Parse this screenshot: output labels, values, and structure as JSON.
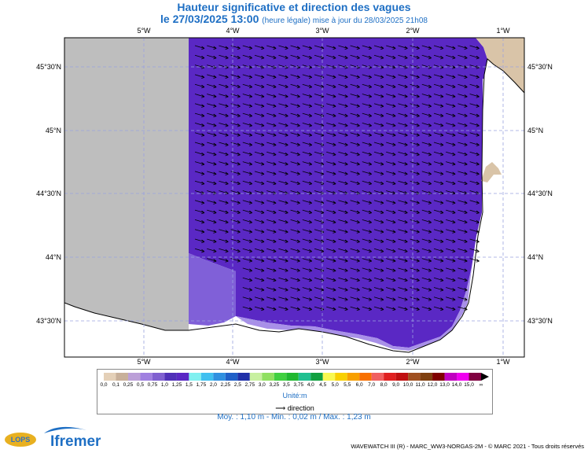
{
  "header": {
    "title": "Hauteur significative et direction des vagues",
    "date": "le 27/03/2025 13:00",
    "update_note": "(heure légale) mise à jour du 28/03/2025 21h08"
  },
  "map": {
    "lon_labels": [
      "5°W",
      "4°W",
      "3°W",
      "2°W",
      "1°W"
    ],
    "lat_labels": [
      "45°30'N",
      "45°N",
      "44°30'N",
      "44°N",
      "43°30'N"
    ],
    "colors": {
      "no_data": "#bebebe",
      "sea_main": "#5a28c4",
      "sea_light": "#8060d8",
      "sea_pale": "#a890e8",
      "land": "#d9c4a8",
      "arrow": "#000000"
    },
    "wave_direction": "east-south-east"
  },
  "legend": {
    "labels": [
      "0,0",
      "0,1",
      "0,25",
      "0,5",
      "0,75",
      "1,0",
      "1,25",
      "1,5",
      "1,75",
      "2,0",
      "2,25",
      "2,5",
      "2,75",
      "3,0",
      "3,25",
      "3,5",
      "3,75",
      "4,0",
      "4,5",
      "5,0",
      "5,5",
      "6,0",
      "7,0",
      "8,0",
      "9,0",
      "10,0",
      "11,0",
      "12,0",
      "13,0",
      "14,0",
      "15,0",
      "∞"
    ],
    "colors": [
      "#e4d0b8",
      "#c8b09a",
      "#bca0d8",
      "#a080e0",
      "#8060d0",
      "#5030b8",
      "#5a28c4",
      "#80f0f0",
      "#40c0f0",
      "#3090e0",
      "#2060c8",
      "#2030a8",
      "#c8f0a0",
      "#90e060",
      "#40d040",
      "#20b830",
      "#20c090",
      "#10a040",
      "#f8f850",
      "#f8d000",
      "#f8a000",
      "#f87000",
      "#f06060",
      "#e02020",
      "#c01010",
      "#a05020",
      "#804010",
      "#800000",
      "#c000c0",
      "#f000f0",
      "#800040"
    ],
    "unit": "Unité:m",
    "direction_label": "direction"
  },
  "stats": {
    "text": "Moy. : 1,10 m   -   Min. : 0,02 m / Max. : 1,23 m"
  },
  "logos": {
    "lops": "LOPS",
    "ifremer": "Ifremer"
  },
  "footer": "WAVEWATCH III (R) - MARC_WW3-NORGAS-2M - © MARC 2021 - Tous droits réservés"
}
